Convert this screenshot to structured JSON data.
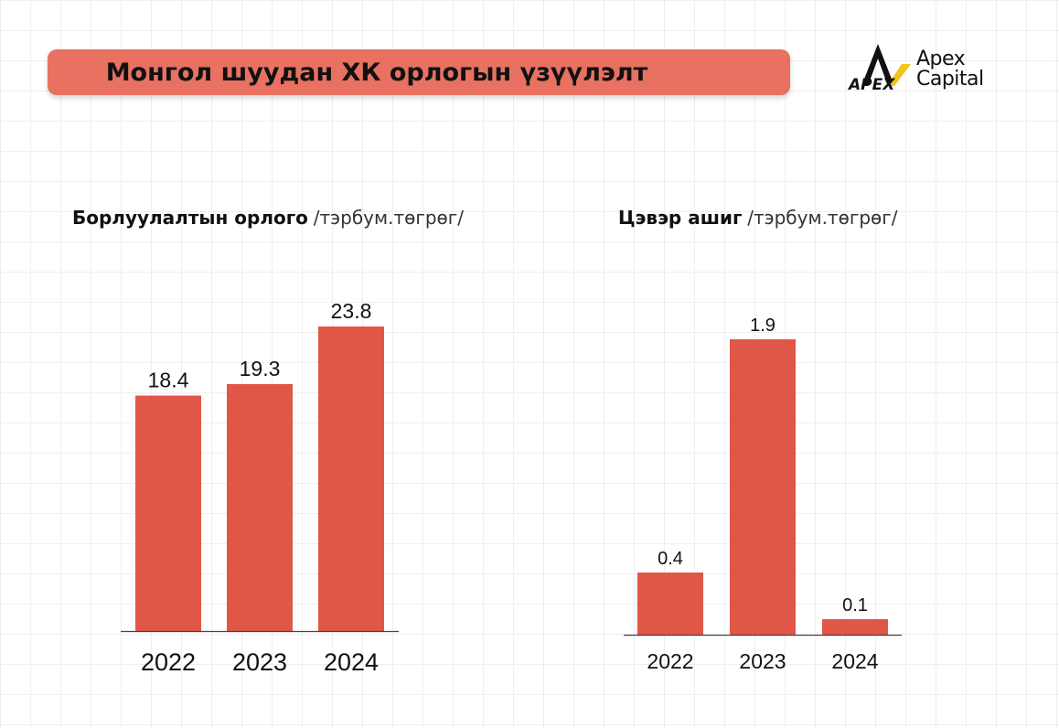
{
  "header": {
    "title": "Монгол шуудан ХК орлогын үзүүлэлт",
    "banner_color": "#e87161"
  },
  "logo": {
    "mark_text": "APEX",
    "line1": "Apex",
    "line2": "Capital"
  },
  "chart_data": [
    {
      "type": "bar",
      "title_bold": "Борлуулалтын орлого",
      "title_unit": "/тэрбум.төгрөг/",
      "categories": [
        "2022",
        "2023",
        "2024"
      ],
      "values": [
        18.4,
        19.3,
        23.8
      ],
      "value_labels": [
        "18.4",
        "19.3",
        "23.8"
      ],
      "ylim": [
        0,
        23.8
      ],
      "grid": false,
      "color": "#e05748"
    },
    {
      "type": "bar",
      "title_bold": "Цэвэр ашиг",
      "title_unit": "/тэрбум.төгрөг/",
      "categories": [
        "2022",
        "2023",
        "2024"
      ],
      "values": [
        0.4,
        1.9,
        0.1
      ],
      "value_labels": [
        "0.4",
        "1.9",
        "0.1"
      ],
      "ylim": [
        0,
        1.9
      ],
      "grid": false,
      "color": "#e05748"
    }
  ]
}
